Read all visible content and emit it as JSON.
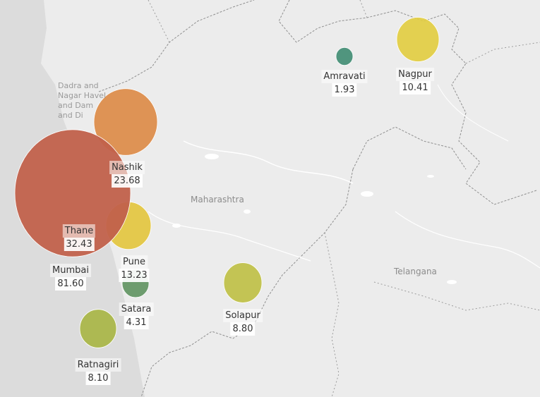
{
  "map": {
    "region_labels": {
      "maharashtra": "Maharashtra",
      "telangana": "Telangana",
      "dadra": [
        "Dadra and",
        "Nagar Havel",
        "and Dam",
        "and Di"
      ]
    },
    "colors": {
      "background": "#ececec",
      "sea": "#dcdcdc",
      "border": "#8f8f8f",
      "water": "#ffffff"
    }
  },
  "chart_data": {
    "type": "bubble-map",
    "metric_unit": "",
    "points": [
      {
        "name": "Mumbai",
        "value": 81.6,
        "label": "81.60",
        "color": "#c1614b"
      },
      {
        "name": "Thane",
        "value": 32.43,
        "label": "32.43",
        "color": "#c1614b"
      },
      {
        "name": "Nashik",
        "value": 23.68,
        "label": "23.68",
        "color": "#dd8a45"
      },
      {
        "name": "Pune",
        "value": 13.23,
        "label": "13.23",
        "color": "#e3c53c"
      },
      {
        "name": "Nagpur",
        "value": 10.41,
        "label": "10.41",
        "color": "#e2cd3f"
      },
      {
        "name": "Solapur",
        "value": 8.8,
        "label": "8.80",
        "color": "#bfc044"
      },
      {
        "name": "Ratnagiri",
        "value": 8.1,
        "label": "8.10",
        "color": "#a7b543"
      },
      {
        "name": "Satara",
        "value": 4.31,
        "label": "4.31",
        "color": "#5f9360"
      },
      {
        "name": "Amravati",
        "value": 1.93,
        "label": "1.93",
        "color": "#3f8c72"
      }
    ]
  }
}
